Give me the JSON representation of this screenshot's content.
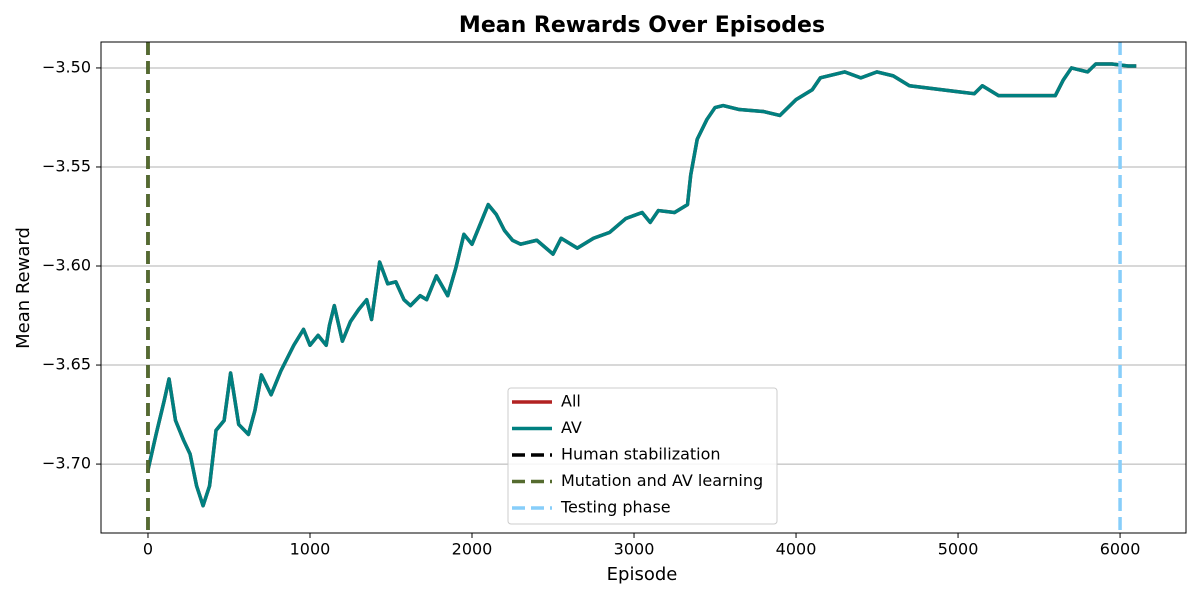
{
  "chart_data": {
    "type": "line",
    "title": "Mean Rewards Over Episodes",
    "xlabel": "Episode",
    "ylabel": "Mean Reward",
    "x": [
      0,
      50,
      100,
      130,
      170,
      220,
      260,
      300,
      340,
      380,
      420,
      470,
      510,
      560,
      620,
      660,
      700,
      760,
      820,
      900,
      960,
      1000,
      1050,
      1100,
      1120,
      1150,
      1200,
      1250,
      1300,
      1350,
      1380,
      1430,
      1480,
      1530,
      1580,
      1620,
      1680,
      1720,
      1780,
      1850,
      1900,
      1950,
      2000,
      2050,
      2100,
      2150,
      2200,
      2250,
      2300,
      2400,
      2500,
      2550,
      2650,
      2750,
      2850,
      2950,
      3050,
      3100,
      3150,
      3250,
      3330,
      3350,
      3390,
      3450,
      3500,
      3550,
      3650,
      3800,
      3900,
      4000,
      4100,
      4150,
      4300,
      4400,
      4500,
      4600,
      4700,
      4800,
      5000,
      5100,
      5150,
      5250,
      5400,
      5600,
      5650,
      5700,
      5800,
      5850,
      5950,
      6050,
      6100
    ],
    "series": [
      {
        "name": "All",
        "color": "#b22222",
        "values": [
          -3.703,
          -3.685,
          -3.668,
          -3.657,
          -3.678,
          -3.688,
          -3.695,
          -3.711,
          -3.721,
          -3.711,
          -3.683,
          -3.678,
          -3.654,
          -3.68,
          -3.685,
          -3.673,
          -3.655,
          -3.665,
          -3.653,
          -3.64,
          -3.632,
          -3.64,
          -3.635,
          -3.64,
          -3.63,
          -3.62,
          -3.638,
          -3.628,
          -3.622,
          -3.617,
          -3.627,
          -3.598,
          -3.609,
          -3.608,
          -3.617,
          -3.62,
          -3.615,
          -3.617,
          -3.605,
          -3.615,
          -3.601,
          -3.584,
          -3.589,
          -3.579,
          -3.569,
          -3.574,
          -3.582,
          -3.587,
          -3.589,
          -3.587,
          -3.594,
          -3.586,
          -3.591,
          -3.586,
          -3.583,
          -3.576,
          -3.573,
          -3.578,
          -3.572,
          -3.573,
          -3.569,
          -3.554,
          -3.536,
          -3.526,
          -3.52,
          -3.519,
          -3.521,
          -3.522,
          -3.524,
          -3.516,
          -3.511,
          -3.505,
          -3.502,
          -3.505,
          -3.502,
          -3.504,
          -3.509,
          -3.51,
          -3.512,
          -3.513,
          -3.509,
          -3.514,
          -3.514,
          -3.514,
          -3.506,
          -3.5,
          -3.502,
          -3.498,
          -3.498,
          -3.499,
          -3.499
        ]
      },
      {
        "name": "AV",
        "color": "#008080",
        "values": [
          -3.703,
          -3.685,
          -3.668,
          -3.657,
          -3.678,
          -3.688,
          -3.695,
          -3.711,
          -3.721,
          -3.711,
          -3.683,
          -3.678,
          -3.654,
          -3.68,
          -3.685,
          -3.673,
          -3.655,
          -3.665,
          -3.653,
          -3.64,
          -3.632,
          -3.64,
          -3.635,
          -3.64,
          -3.63,
          -3.62,
          -3.638,
          -3.628,
          -3.622,
          -3.617,
          -3.627,
          -3.598,
          -3.609,
          -3.608,
          -3.617,
          -3.62,
          -3.615,
          -3.617,
          -3.605,
          -3.615,
          -3.601,
          -3.584,
          -3.589,
          -3.579,
          -3.569,
          -3.574,
          -3.582,
          -3.587,
          -3.589,
          -3.587,
          -3.594,
          -3.586,
          -3.591,
          -3.586,
          -3.583,
          -3.576,
          -3.573,
          -3.578,
          -3.572,
          -3.573,
          -3.569,
          -3.554,
          -3.536,
          -3.526,
          -3.52,
          -3.519,
          -3.521,
          -3.522,
          -3.524,
          -3.516,
          -3.511,
          -3.505,
          -3.502,
          -3.505,
          -3.502,
          -3.504,
          -3.509,
          -3.51,
          -3.512,
          -3.513,
          -3.509,
          -3.514,
          -3.514,
          -3.514,
          -3.506,
          -3.5,
          -3.502,
          -3.498,
          -3.498,
          -3.499,
          -3.499
        ]
      }
    ],
    "vlines": [
      {
        "name": "Human stabilization",
        "color": "#000000",
        "x": 0
      },
      {
        "name": "Mutation and AV learning",
        "color": "#556b2f",
        "x": 0
      },
      {
        "name": "Testing phase",
        "color": "#87cefa",
        "x": 6000
      }
    ],
    "xlim": [
      -290,
      6407
    ],
    "ylim": [
      -3.7348,
      -3.4869
    ],
    "xticks": [
      0,
      1000,
      2000,
      3000,
      4000,
      5000,
      6000
    ],
    "yticks": [
      {
        "value": -3.7,
        "label": "−3.70"
      },
      {
        "value": -3.65,
        "label": "−3.65"
      },
      {
        "value": -3.6,
        "label": "−3.60"
      },
      {
        "value": -3.55,
        "label": "−3.55"
      },
      {
        "value": -3.5,
        "label": "−3.50"
      }
    ],
    "grid": "y",
    "legend": "lower center"
  }
}
